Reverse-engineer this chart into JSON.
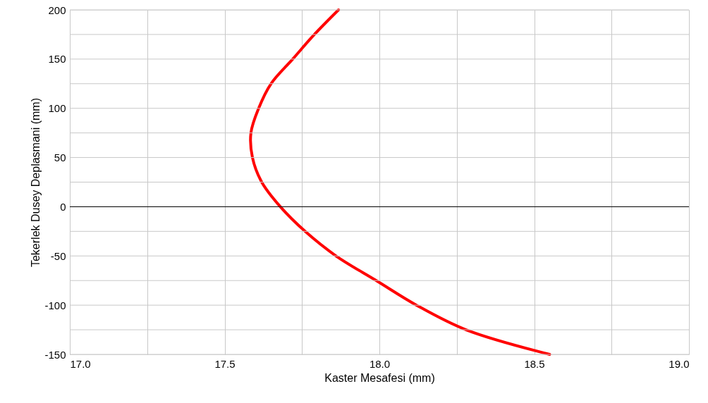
{
  "chart_data": {
    "type": "line",
    "xlabel": "Kaster Mesafesi (mm)",
    "ylabel": "Tekerlek Dusey Deplasmani (mm)",
    "series": [
      {
        "color": "#ff0000",
        "x": [
          17.868,
          17.79,
          17.72,
          17.65,
          17.61,
          17.585,
          17.59,
          17.62,
          17.68,
          17.76,
          17.86,
          17.99,
          18.12,
          18.28,
          18.55
        ],
        "values": [
          200,
          175,
          150,
          125,
          100,
          75,
          50,
          25,
          0,
          -25,
          -50,
          -75,
          -100,
          -125,
          -150
        ]
      }
    ],
    "xlim": [
      17,
      19
    ],
    "xticks": [
      {
        "value": 17,
        "label": "17.0"
      },
      {
        "value": 17.25,
        "label": null
      },
      {
        "value": 17.5,
        "label": "17.5"
      },
      {
        "value": 17.75,
        "label": null
      },
      {
        "value": 18,
        "label": "18.0"
      },
      {
        "value": 18.25,
        "label": null
      },
      {
        "value": 18.5,
        "label": "18.5"
      },
      {
        "value": 18.75,
        "label": null
      },
      {
        "value": 19,
        "label": "19.0"
      }
    ],
    "ylim": [
      -150,
      200
    ],
    "yticks": [
      -150,
      {
        "value": -125,
        "label": null
      },
      -100,
      {
        "value": -75,
        "label": null
      },
      -50,
      {
        "value": -25,
        "label": null
      },
      0,
      {
        "value": 25,
        "label": null
      },
      50,
      {
        "value": 75,
        "label": null
      },
      100,
      {
        "value": 125,
        "label": null
      },
      150,
      {
        "value": 175,
        "label": null
      },
      200
    ],
    "ref_lines": [
      {
        "axis": "y",
        "value": 0,
        "color": "#000000"
      }
    ],
    "grid": true,
    "marker": "none",
    "line_style": "solid"
  }
}
